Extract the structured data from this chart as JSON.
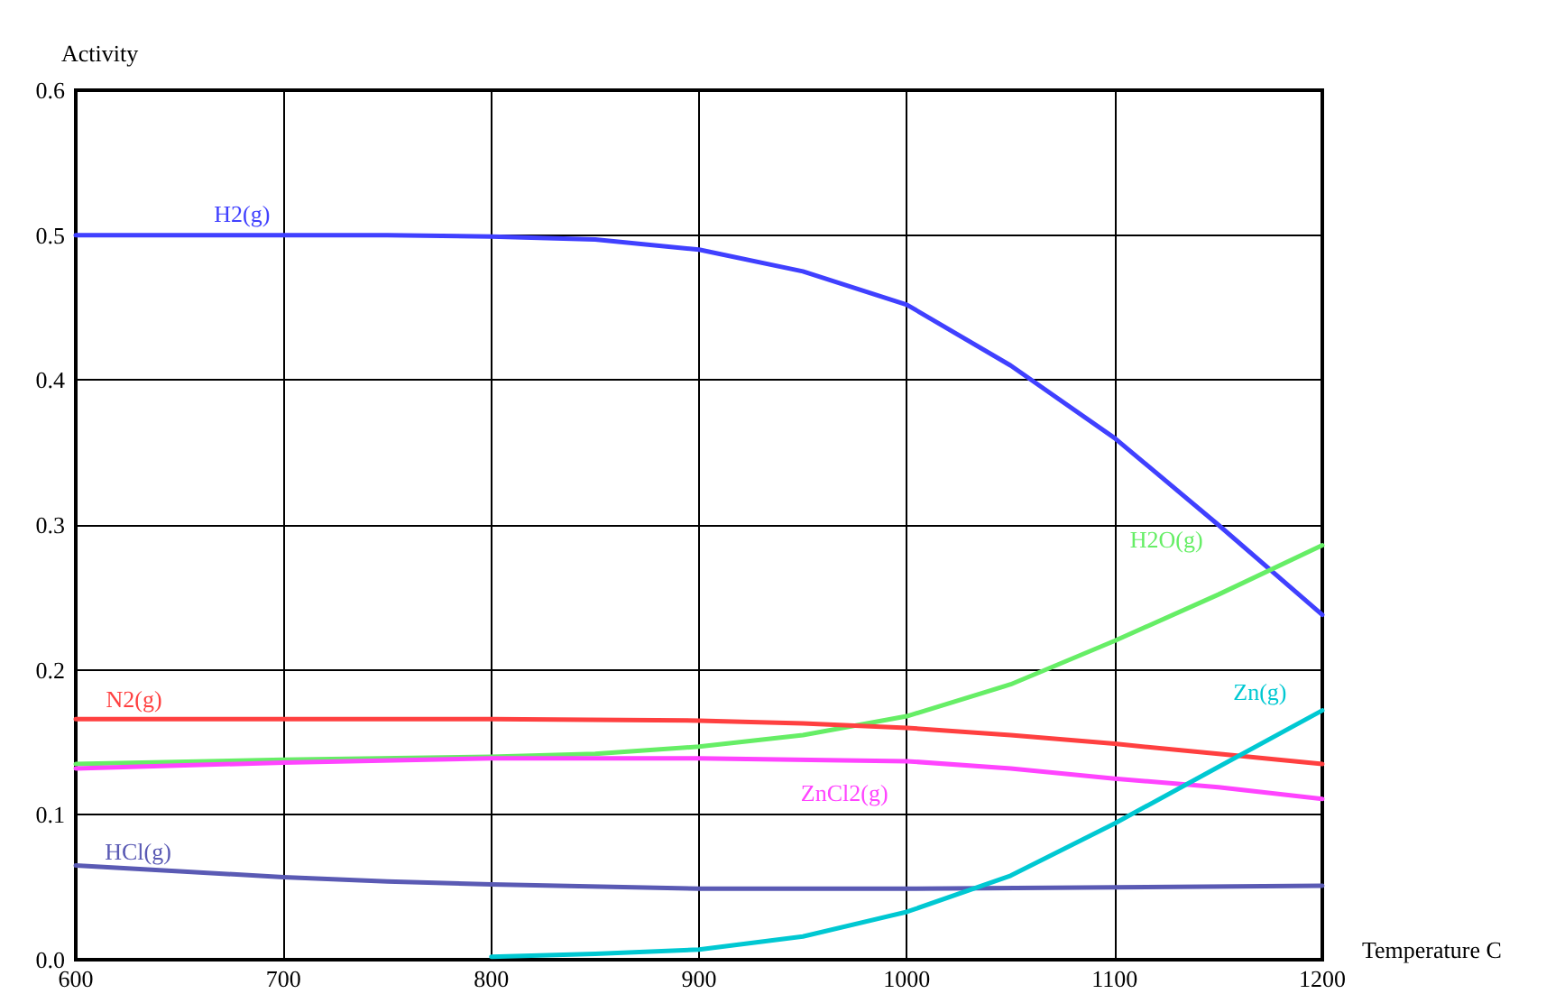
{
  "chart_data": {
    "type": "line",
    "ylabel": "Activity",
    "xlabel": "Temperature C",
    "xlim": [
      600,
      1200
    ],
    "xticks": [
      600,
      700,
      800,
      900,
      1000,
      1100,
      1200
    ],
    "ylim": [
      0,
      0.6
    ],
    "yticks": [
      {
        "value": 0,
        "label": "0.0"
      },
      0.1,
      0.2,
      0.3,
      0.4,
      0.5,
      0.6
    ],
    "grid": true,
    "legend": false,
    "marker": "none",
    "line_style": "solid",
    "series": [
      {
        "name": "H2(g)",
        "color": "#4040ff",
        "x": [
          600,
          650,
          700,
          750,
          800,
          850,
          900,
          950,
          1000,
          1050,
          1100,
          1150,
          1200
        ],
        "values": [
          0.5,
          0.5,
          0.5,
          0.5,
          0.499,
          0.497,
          0.49,
          0.475,
          0.452,
          0.41,
          0.36,
          0.3,
          0.238
        ]
      },
      {
        "name": "H2O(g)",
        "color": "#66ee66",
        "x": [
          600,
          700,
          800,
          850,
          900,
          950,
          1000,
          1050,
          1100,
          1150,
          1200
        ],
        "values": [
          0.135,
          0.138,
          0.14,
          0.142,
          0.147,
          0.155,
          0.168,
          0.19,
          0.22,
          0.252,
          0.286
        ]
      },
      {
        "name": "N2(g)",
        "color": "#ff4040",
        "x": [
          600,
          800,
          900,
          950,
          1000,
          1050,
          1100,
          1150,
          1200
        ],
        "values": [
          0.166,
          0.166,
          0.165,
          0.163,
          0.16,
          0.155,
          0.149,
          0.142,
          0.135
        ]
      },
      {
        "name": "ZnCl2(g)",
        "color": "#ff44ff",
        "x": [
          600,
          700,
          800,
          900,
          1000,
          1050,
          1100,
          1150,
          1200
        ],
        "values": [
          0.132,
          0.136,
          0.139,
          0.139,
          0.137,
          0.132,
          0.125,
          0.119,
          0.111
        ]
      },
      {
        "name": "HCl(g)",
        "color": "#5a5ab4",
        "x": [
          600,
          650,
          700,
          750,
          800,
          900,
          1000,
          1100,
          1200
        ],
        "values": [
          0.065,
          0.061,
          0.057,
          0.054,
          0.052,
          0.049,
          0.049,
          0.05,
          0.051
        ]
      },
      {
        "name": "Zn(g)",
        "color": "#00c8d2",
        "x": [
          800,
          850,
          900,
          950,
          1000,
          1050,
          1100,
          1150,
          1200
        ],
        "values": [
          0.002,
          0.004,
          0.007,
          0.016,
          0.033,
          0.058,
          0.094,
          0.133,
          0.172
        ]
      }
    ]
  }
}
